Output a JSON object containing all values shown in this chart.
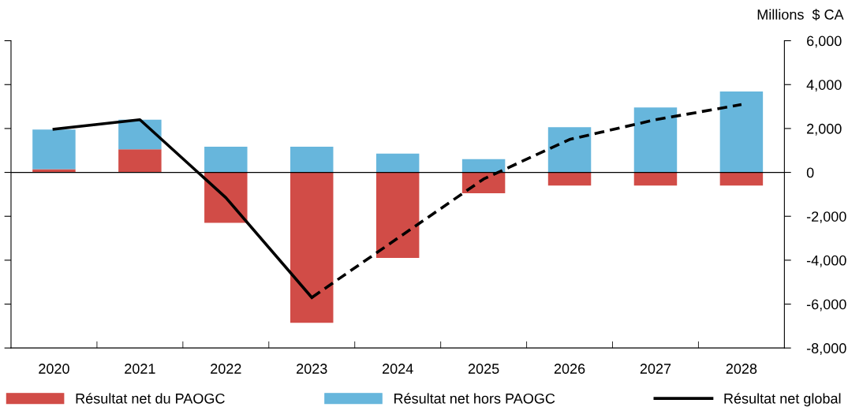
{
  "chart_data": {
    "type": "bar",
    "stacked": true,
    "ylabel": "Millions  $ CA",
    "categories": [
      "2020",
      "2021",
      "2022",
      "2023",
      "2024",
      "2025",
      "2026",
      "2027",
      "2028"
    ],
    "series": [
      {
        "name": "Résultat net du PAOGC",
        "color": "#d14c47",
        "values": [
          150,
          1050,
          -2300,
          -6850,
          -3900,
          -950,
          -600,
          -600,
          -600
        ]
      },
      {
        "name": "Résultat net hors PAOGC",
        "color": "#67b6dc",
        "values": [
          1800,
          1350,
          1170,
          1170,
          860,
          600,
          2060,
          2960,
          3690
        ]
      },
      {
        "name": "Résultat net global",
        "type": "line",
        "color": "#000000",
        "line_style": "solid",
        "values": [
          1970,
          2400,
          -1150,
          -5700,
          null,
          null,
          null,
          null,
          null
        ]
      },
      {
        "type": "line",
        "color": "#000000",
        "line_style": "dashed",
        "values": [
          null,
          null,
          null,
          -5700,
          -3000,
          -300,
          1500,
          2400,
          3090
        ]
      }
    ],
    "ylim": [
      -8000,
      6000
    ],
    "yticks": [
      {
        "value": -8000,
        "label": "-8,000"
      },
      {
        "value": -6000,
        "label": "-6,000"
      },
      {
        "value": -4000,
        "label": "-4,000"
      },
      {
        "value": -2000,
        "label": "-2,000"
      },
      0,
      {
        "value": 2000,
        "label": "2,000"
      },
      {
        "value": 4000,
        "label": "4,000"
      },
      {
        "value": 6000,
        "label": "6,000"
      }
    ],
    "ref_lines": [
      {
        "axis": "y",
        "value": 0,
        "color": "#000000"
      }
    ],
    "grid": false,
    "legend": "bottom",
    "marker": "none"
  }
}
